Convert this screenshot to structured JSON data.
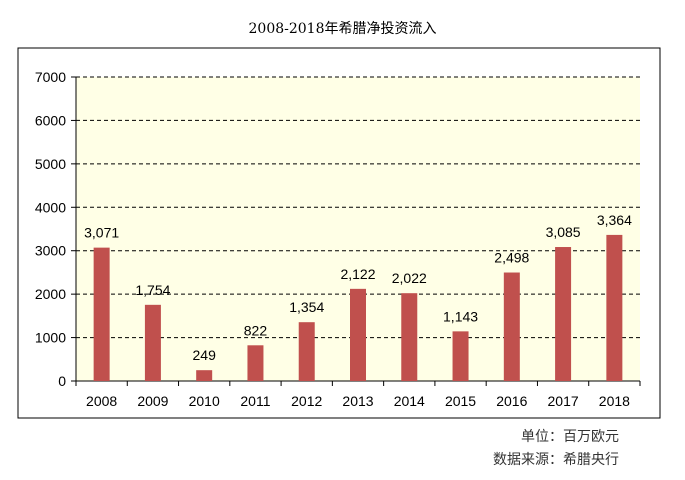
{
  "title": "2008-2018年希腊净投资流入",
  "footer": {
    "unit": "单位：百万欧元",
    "source": "数据来源：希腊央行"
  },
  "colors": {
    "plot_background": "#ffffe6",
    "bar": "#c0504d",
    "grid": "#000000"
  },
  "chart_data": {
    "type": "bar",
    "title": "2008-2018年希腊净投资流入",
    "categories": [
      "2008",
      "2009",
      "2010",
      "2011",
      "2012",
      "2013",
      "2014",
      "2015",
      "2016",
      "2017",
      "2018"
    ],
    "values": [
      3071,
      1754,
      249,
      822,
      1354,
      2122,
      2022,
      1143,
      2498,
      3085,
      3364
    ],
    "value_labels": [
      "3,071",
      "1,754",
      "249",
      "822",
      "1,354",
      "2,122",
      "2,022",
      "1,143",
      "2,498",
      "3,085",
      "3,364"
    ],
    "ylim": [
      0,
      7000
    ],
    "yticks": [
      0,
      1000,
      2000,
      3000,
      4000,
      5000,
      6000,
      7000
    ],
    "xlabel": "",
    "ylabel": "",
    "grid": "horizontal dashed",
    "legend": "none"
  }
}
